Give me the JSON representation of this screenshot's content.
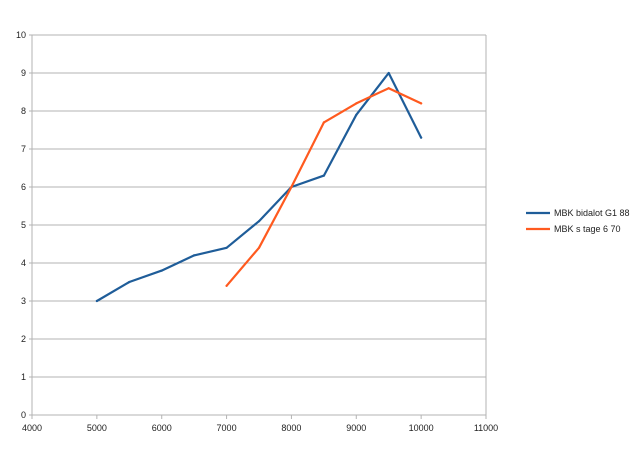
{
  "chart_data": {
    "type": "line",
    "title": "",
    "xlabel": "",
    "ylabel": "",
    "xlim": [
      4000,
      11000
    ],
    "ylim": [
      0,
      10
    ],
    "x_ticks": [
      4000,
      5000,
      6000,
      7000,
      8000,
      9000,
      10000,
      11000
    ],
    "y_ticks": [
      0,
      1,
      2,
      3,
      4,
      5,
      6,
      7,
      8,
      9,
      10
    ],
    "grid": "horizontal",
    "legend_position": "right",
    "series": [
      {
        "name": "MBK bidalot G1 88",
        "color": "#1f5d99",
        "x": [
          5000,
          5500,
          6000,
          6500,
          7000,
          7500,
          8000,
          8500,
          9000,
          9500,
          10000
        ],
        "y": [
          3.0,
          3.5,
          3.8,
          4.2,
          4.4,
          5.1,
          6.0,
          6.3,
          7.9,
          9.0,
          7.3
        ]
      },
      {
        "name": "MBK s tage 6 70",
        "color": "#ff5a1f",
        "x": [
          7000,
          7500,
          8000,
          8500,
          9000,
          9500,
          10000
        ],
        "y": [
          3.4,
          4.4,
          6.0,
          7.7,
          8.2,
          8.6,
          8.2
        ]
      }
    ]
  }
}
